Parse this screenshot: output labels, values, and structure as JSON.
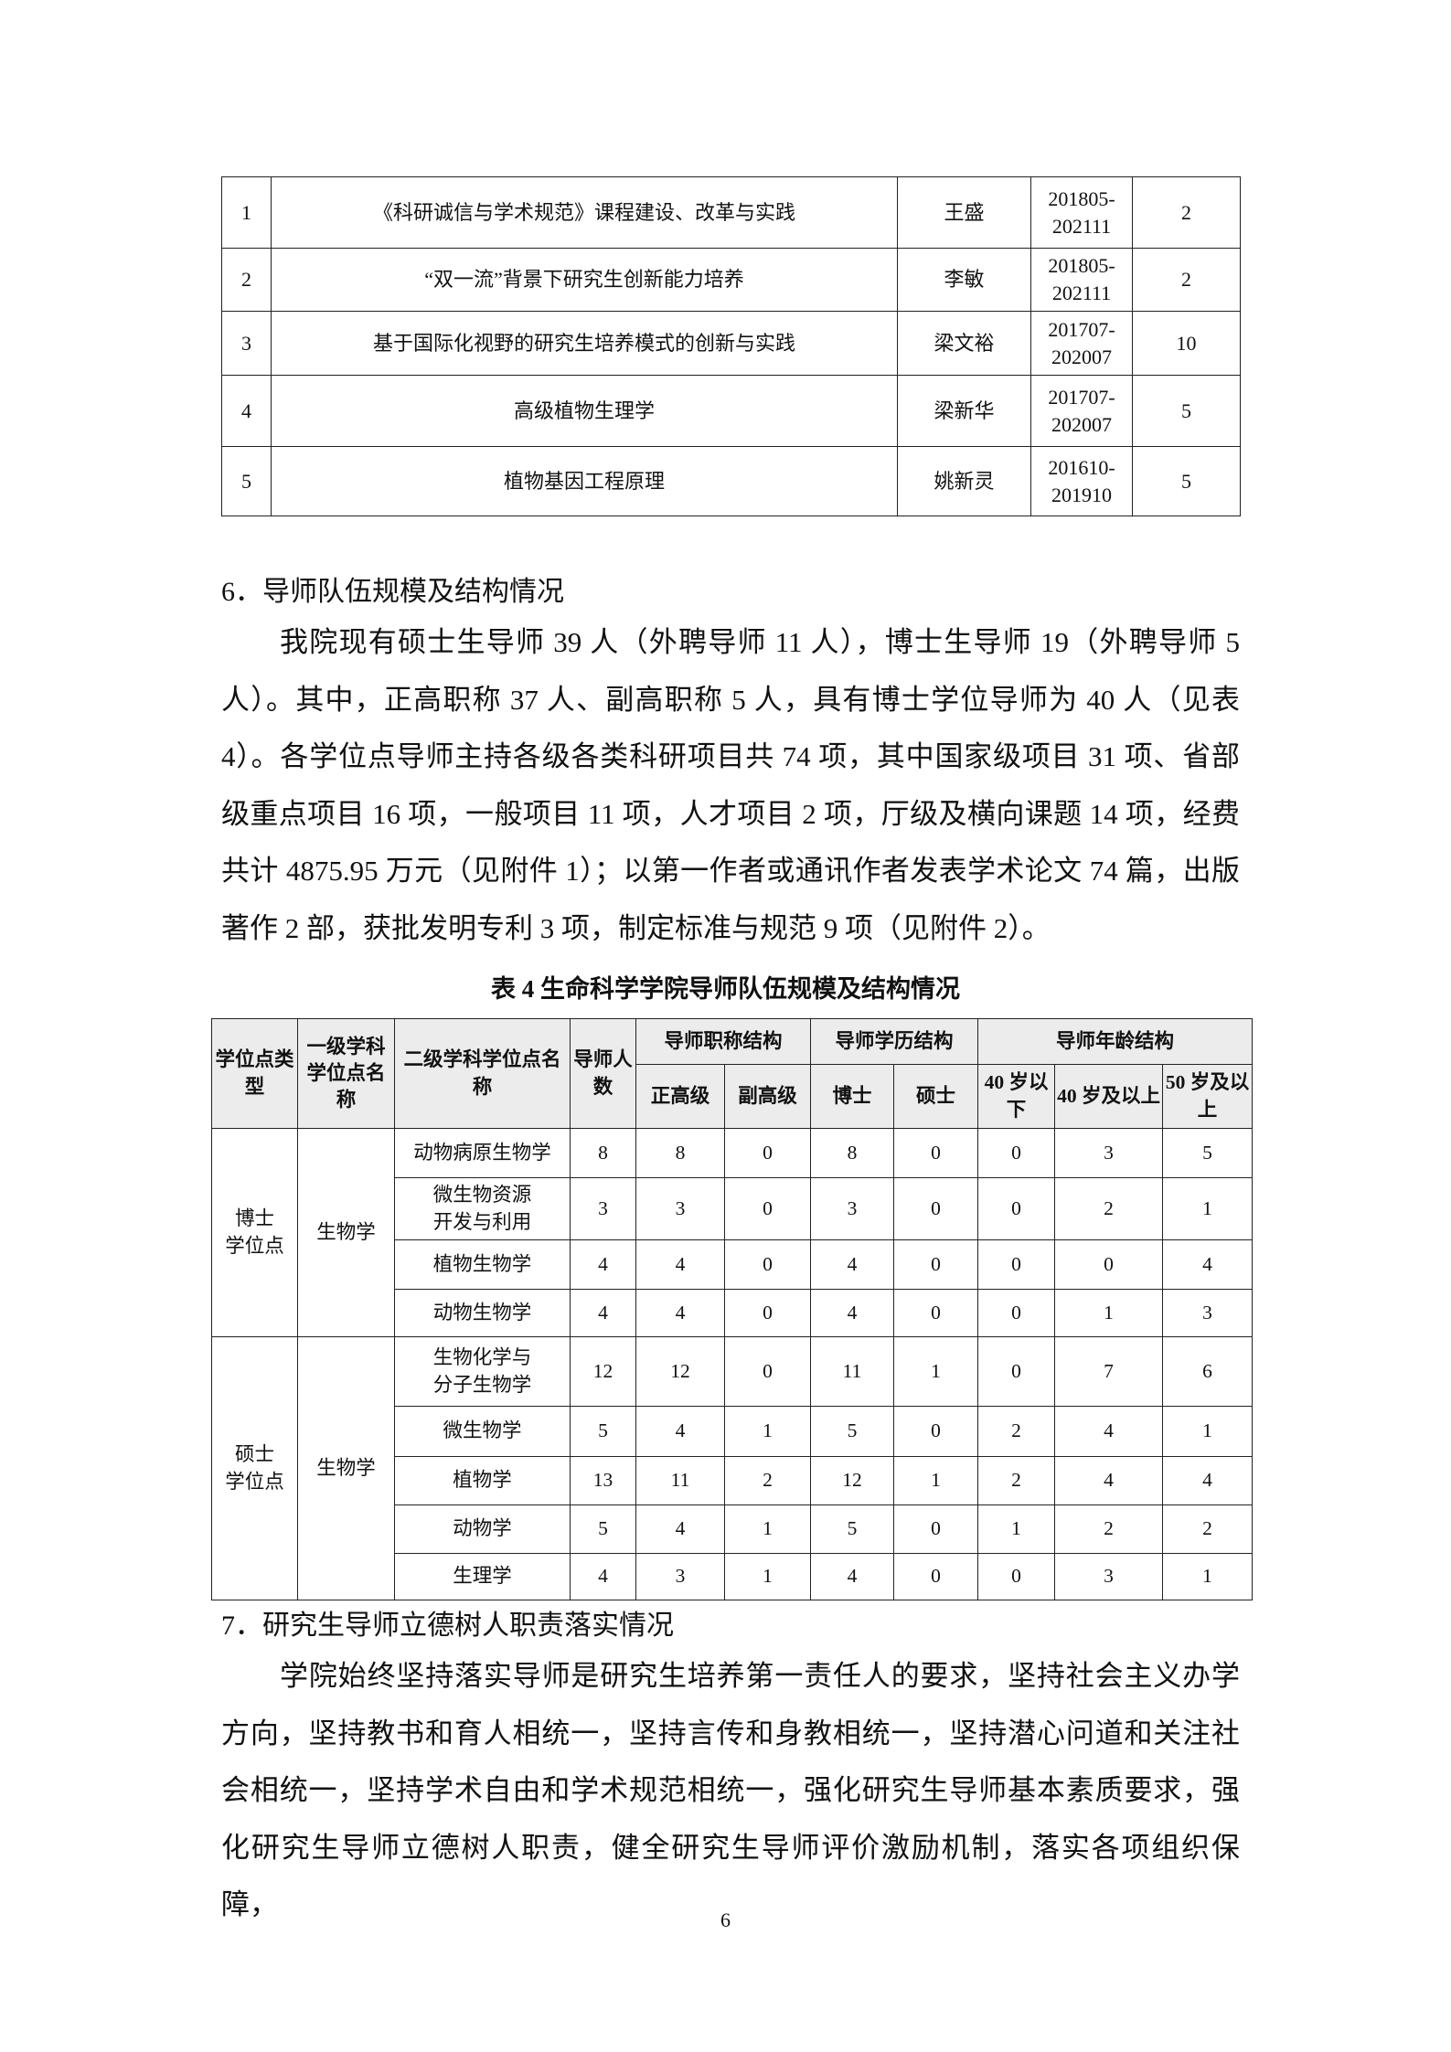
{
  "projects_table": {
    "rows": [
      [
        "1",
        "《科研诚信与学术规范》课程建设、改革与实践",
        "王盛",
        "201805-\n202111",
        "2"
      ],
      [
        "2",
        "“双一流”背景下研究生创新能力培养",
        "李敏",
        "201805-\n202111",
        "2"
      ],
      [
        "3",
        "基于国际化视野的研究生培养模式的创新与实践",
        "梁文裕",
        "201707-\n202007",
        "10"
      ],
      [
        "4",
        "高级植物生理学",
        "梁新华",
        "201707-\n202007",
        "5"
      ],
      [
        "5",
        "植物基因工程原理",
        "姚新灵",
        "201610-\n201910",
        "5"
      ]
    ]
  },
  "section6": {
    "heading": "6．导师队伍规模及结构情况",
    "paragraph": "我院现有硕士生导师 39 人（外聘导师 11 人），博士生导师 19（外聘导师 5 人）。其中，正高职称 37 人、副高职称 5 人，具有博士学位导师为 40 人（见表 4）。各学位点导师主持各级各类科研项目共 74 项，其中国家级项目 31 项、省部级重点项目 16 项，一般项目 11 项，人才项目 2 项，厅级及横向课题 14 项，经费共计 4875.95 万元（见附件 1）；以第一作者或通讯作者发表学术论文 74 篇，出版著作 2 部，获批发明专利 3 项，制定标准与规范 9 项（见附件 2）。"
  },
  "table4": {
    "caption": "表 4  生命科学学院导师队伍规模及结构情况",
    "headers": {
      "type": "学位点类型",
      "first_level": "一级学科学位点名称",
      "second_level": "二级学科学位点名称",
      "count": "导师人数",
      "title_group": "导师职称结构",
      "edu_group": "导师学历结构",
      "age_group": "导师年龄结构",
      "sub": [
        "正高级",
        "副高级",
        "博士",
        "硕士",
        "40 岁以下",
        "40 岁及以上",
        "50 岁及以上"
      ]
    },
    "groups": [
      {
        "type": "博士\n学位点",
        "first_level": "生物学",
        "rows": [
          [
            "动物病原生物学",
            "8",
            "8",
            "0",
            "8",
            "0",
            "0",
            "3",
            "5"
          ],
          [
            "微生物资源\n开发与利用",
            "3",
            "3",
            "0",
            "3",
            "0",
            "0",
            "2",
            "1"
          ],
          [
            "植物生物学",
            "4",
            "4",
            "0",
            "4",
            "0",
            "0",
            "0",
            "4"
          ],
          [
            "动物生物学",
            "4",
            "4",
            "0",
            "4",
            "0",
            "0",
            "1",
            "3"
          ]
        ]
      },
      {
        "type": "硕士\n学位点",
        "first_level": "生物学",
        "rows": [
          [
            "生物化学与\n分子生物学",
            "12",
            "12",
            "0",
            "11",
            "1",
            "0",
            "7",
            "6"
          ],
          [
            "微生物学",
            "5",
            "4",
            "1",
            "5",
            "0",
            "2",
            "4",
            "1"
          ],
          [
            "植物学",
            "13",
            "11",
            "2",
            "12",
            "1",
            "2",
            "4",
            "4"
          ],
          [
            "动物学",
            "5",
            "4",
            "1",
            "5",
            "0",
            "1",
            "2",
            "2"
          ],
          [
            "生理学",
            "4",
            "3",
            "1",
            "4",
            "0",
            "0",
            "3",
            "1"
          ]
        ]
      }
    ]
  },
  "section7": {
    "heading": "7．研究生导师立德树人职责落实情况",
    "paragraph": "学院始终坚持落实导师是研究生培养第一责任人的要求，坚持社会主义办学方向，坚持教书和育人相统一，坚持言传和身教相统一，坚持潜心问道和关注社会相统一，坚持学术自由和学术规范相统一，强化研究生导师基本素质要求，强化研究生导师立德树人职责，健全研究生导师评价激励机制，落实各项组织保障，"
  },
  "page_number": "6"
}
